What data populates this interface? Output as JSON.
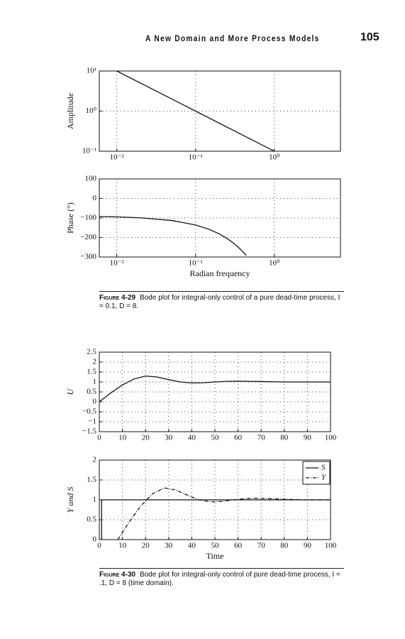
{
  "header": {
    "title": "A New Domain and More Process Models",
    "page": "105"
  },
  "captions": [
    {
      "label": "Figure 4-29",
      "text": "Bode plot for integral-only control of a pure dead-time process, I = 0.1, D = 8."
    },
    {
      "label": "Figure 4-30",
      "text": "Bode plot for integral-only control of pure dead-time process, I = .1, D = 8 (time domain)."
    }
  ],
  "chart_data": [
    {
      "type": "line",
      "xscale": "log",
      "yscale": "log",
      "grid": true,
      "ylabel": "Amplitude",
      "xlim": [
        0.006,
        6.9
      ],
      "ylim": [
        0.1,
        10
      ],
      "xticks": [
        {
          "value": 0.01,
          "label": "10⁻²"
        },
        {
          "value": 0.1,
          "label": "10⁻¹"
        },
        {
          "value": 1,
          "label": "10⁰"
        }
      ],
      "yticks": [
        {
          "value": 10,
          "label": "10¹"
        },
        {
          "value": 1,
          "label": "10⁰"
        },
        {
          "value": 0.1,
          "label": "10⁻¹"
        }
      ],
      "series": [
        {
          "color": "#111111",
          "x": [
            0.01,
            0.1,
            1
          ],
          "values": [
            10,
            1,
            0.1
          ]
        }
      ]
    },
    {
      "type": "line",
      "xscale": "log",
      "grid": true,
      "ylabel": "Phase (°)",
      "xlabel": "Radian frequency",
      "xlim": [
        0.006,
        6.9
      ],
      "ylim": [
        -300,
        100
      ],
      "xticks": [
        {
          "value": 0.01,
          "label": "10⁻²"
        },
        {
          "value": 0.1,
          "label": "10⁻¹"
        },
        {
          "value": 1,
          "label": "10⁰"
        }
      ],
      "yticks": [
        100,
        0,
        {
          "value": -100,
          "label": "−100"
        },
        {
          "value": -200,
          "label": "−200"
        },
        {
          "value": -300,
          "label": "−300"
        }
      ],
      "series": [
        {
          "color": "#111111",
          "x": [
            0.006,
            0.01,
            0.02,
            0.05,
            0.1,
            0.15,
            0.2,
            0.25,
            0.3,
            0.35,
            0.4,
            0.44
          ],
          "values": [
            -92.75,
            -94.58,
            -99.17,
            -112.9,
            -135.8,
            -158.8,
            -181.7,
            -204.6,
            -227.5,
            -250.4,
            -273.3,
            -291.7
          ]
        }
      ]
    },
    {
      "type": "line",
      "grid": true,
      "ylabel": "U",
      "xlim": [
        0,
        100
      ],
      "ylim": [
        -1.5,
        2.5
      ],
      "xticks": [
        0,
        10,
        20,
        30,
        40,
        50,
        60,
        70,
        80,
        90,
        100
      ],
      "yticks": [
        2.5,
        2,
        1.5,
        1,
        0.5,
        0,
        {
          "value": -0.5,
          "label": "−0.5"
        },
        {
          "value": -1,
          "label": "−1"
        },
        {
          "value": -1.5,
          "label": "−1.5"
        }
      ],
      "series": [
        {
          "color": "#111111",
          "x": [
            0,
            5,
            10,
            15,
            20,
            25,
            30,
            35,
            40,
            45,
            50,
            55,
            60,
            70,
            80,
            90,
            100
          ],
          "values": [
            0,
            0.45,
            0.85,
            1.15,
            1.3,
            1.25,
            1.12,
            1.0,
            0.95,
            0.96,
            1.0,
            1.03,
            1.04,
            1.02,
            1.0,
            1.0,
            1.0
          ]
        }
      ]
    },
    {
      "type": "line",
      "grid": true,
      "ylabel": "Y and S",
      "xlabel": "Time",
      "legend": "upper right",
      "xlim": [
        0,
        100
      ],
      "ylim": [
        0,
        2
      ],
      "xticks": [
        0,
        10,
        20,
        30,
        40,
        50,
        60,
        70,
        80,
        90,
        100
      ],
      "yticks": [
        2,
        1.5,
        1,
        0.5,
        0
      ],
      "series": [
        {
          "name": "S",
          "color": "#111111",
          "dash": "solid",
          "x": [
            0,
            1,
            1,
            100
          ],
          "values": [
            0,
            0,
            1,
            1
          ]
        },
        {
          "name": "Y",
          "color": "#111111",
          "dash": "dashdot",
          "x": [
            8,
            13,
            18,
            23,
            28,
            33,
            38,
            43,
            48,
            53,
            58,
            63,
            68,
            78,
            88,
            100
          ],
          "values": [
            0,
            0.45,
            0.85,
            1.15,
            1.3,
            1.25,
            1.12,
            1.0,
            0.95,
            0.96,
            1.0,
            1.03,
            1.04,
            1.02,
            1.0,
            1.0
          ]
        }
      ]
    }
  ]
}
